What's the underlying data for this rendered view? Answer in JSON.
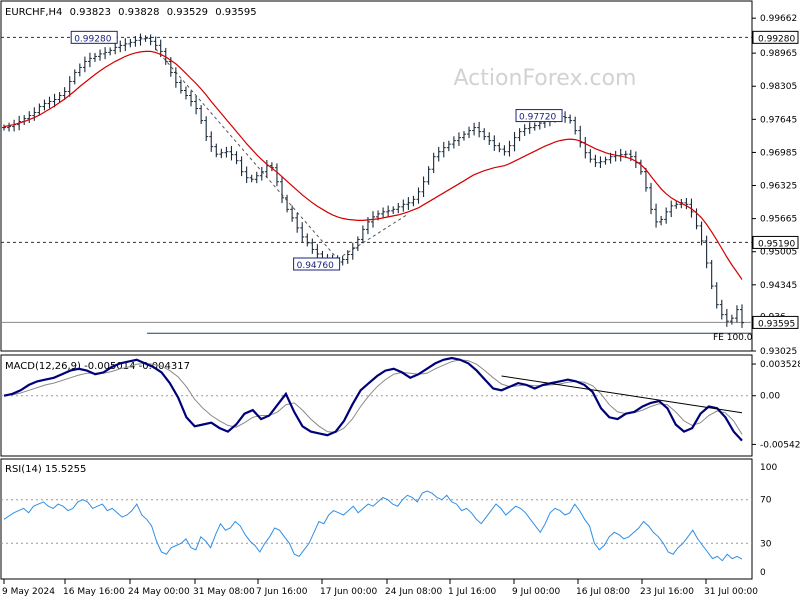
{
  "watermark": "ActionForex.com",
  "chart_data": [
    {
      "type": "candlestick",
      "symbol_header": "EURCHF,H4",
      "ohlc_header": [
        "0.93823",
        "0.93828",
        "0.93529",
        "0.93595"
      ],
      "ylim": [
        0.93025,
        0.99925
      ],
      "y_ticks": [
        "0.99662",
        "0.98965",
        "0.98305",
        "0.97645",
        "0.96985",
        "0.96325",
        "0.95665",
        "0.95005",
        "0.94345",
        "0.93025"
      ],
      "x_ticks": [
        "9 May 2024",
        "16 May 16:00",
        "24 May 00:00",
        "31 May 08:00",
        "7 Jun 16:00",
        "17 Jun 00:00",
        "24 Jun 08:00",
        "1 Jul 16:00",
        "9 Jul 00:00",
        "16 Jul 08:00",
        "23 Jul 16:00",
        "31 Jul 00:00"
      ],
      "horizontal_levels": [
        {
          "value": 0.9928,
          "label": "0.99280",
          "style": "dashed"
        },
        {
          "value": 0.9519,
          "label": "0.95190",
          "style": "dashed"
        },
        {
          "value": 0.93595,
          "label": "0.93595",
          "style": "solid"
        }
      ],
      "fe_label": "FE 100.0",
      "fe_level": 0.9338,
      "fe_partial_label": "0.936",
      "annotations": [
        {
          "label": "0.99280",
          "value": 0.9928
        },
        {
          "label": "0.94760",
          "value": 0.9476
        },
        {
          "label": "0.97720",
          "value": 0.9772
        }
      ],
      "price_close": [
        0.9748,
        0.975,
        0.9754,
        0.976,
        0.9766,
        0.9772,
        0.9778,
        0.979,
        0.9796,
        0.98,
        0.9804,
        0.9812,
        0.982,
        0.984,
        0.9858,
        0.9868,
        0.988,
        0.9886,
        0.989,
        0.9895,
        0.9898,
        0.9902,
        0.9908,
        0.9912,
        0.9915,
        0.9918,
        0.9922,
        0.9925,
        0.9926,
        0.992,
        0.9912,
        0.99,
        0.988,
        0.9858,
        0.9838,
        0.9822,
        0.9812,
        0.98,
        0.9786,
        0.9762,
        0.973,
        0.971,
        0.9695,
        0.9698,
        0.97,
        0.9694,
        0.9682,
        0.966,
        0.9648,
        0.9645,
        0.9652,
        0.966,
        0.9672,
        0.9668,
        0.964,
        0.9608,
        0.9585,
        0.9568,
        0.9548,
        0.953,
        0.9518,
        0.9505,
        0.9496,
        0.9488,
        0.9485,
        0.9482,
        0.948,
        0.9485,
        0.9495,
        0.9508,
        0.9525,
        0.9545,
        0.956,
        0.957,
        0.9576,
        0.958,
        0.9582,
        0.9585,
        0.959,
        0.9595,
        0.9598,
        0.9605,
        0.962,
        0.964,
        0.9665,
        0.969,
        0.97,
        0.9708,
        0.9715,
        0.9722,
        0.9728,
        0.9735,
        0.9742,
        0.9748,
        0.974,
        0.973,
        0.9722,
        0.9712,
        0.9705,
        0.97,
        0.9712,
        0.9728,
        0.974,
        0.9746,
        0.9748,
        0.9752,
        0.9757,
        0.9762,
        0.9765,
        0.9768,
        0.977,
        0.9768,
        0.9762,
        0.9742,
        0.9718,
        0.9698,
        0.9685,
        0.9678,
        0.968,
        0.9684,
        0.969,
        0.9692,
        0.9694,
        0.9695,
        0.969,
        0.9678,
        0.966,
        0.9628,
        0.9585,
        0.956,
        0.9565,
        0.958,
        0.9592,
        0.9595,
        0.9598,
        0.9595,
        0.958,
        0.9552,
        0.9522,
        0.9478,
        0.9432,
        0.9395,
        0.9375,
        0.9362,
        0.9368,
        0.9385,
        0.9359
      ],
      "ma_values": [
        0.975,
        0.9752,
        0.9754,
        0.9757,
        0.976,
        0.9764,
        0.9768,
        0.9773,
        0.9779,
        0.9785,
        0.9791,
        0.9798,
        0.9805,
        0.9813,
        0.9821,
        0.983,
        0.9838,
        0.9846,
        0.9854,
        0.9861,
        0.9868,
        0.9874,
        0.988,
        0.9885,
        0.989,
        0.9894,
        0.9897,
        0.9899,
        0.99,
        0.99,
        0.9898,
        0.9894,
        0.9889,
        0.9882,
        0.9875,
        0.9866,
        0.9856,
        0.9846,
        0.9836,
        0.9825,
        0.9813,
        0.98,
        0.9788,
        0.9776,
        0.9764,
        0.9752,
        0.974,
        0.9728,
        0.9716,
        0.9705,
        0.9694,
        0.9684,
        0.9675,
        0.9667,
        0.9659,
        0.965,
        0.9641,
        0.9632,
        0.9623,
        0.9614,
        0.9606,
        0.9598,
        0.9591,
        0.9585,
        0.9579,
        0.9574,
        0.957,
        0.9567,
        0.9565,
        0.9564,
        0.9563,
        0.9563,
        0.9564,
        0.9565,
        0.9566,
        0.9568,
        0.957,
        0.9572,
        0.9574,
        0.9577,
        0.958,
        0.9584,
        0.9588,
        0.9594,
        0.96,
        0.9606,
        0.9612,
        0.9618,
        0.9624,
        0.963,
        0.9636,
        0.9642,
        0.9648,
        0.9654,
        0.9658,
        0.9662,
        0.9665,
        0.9668,
        0.967,
        0.9672,
        0.9676,
        0.9681,
        0.9686,
        0.9691,
        0.9696,
        0.9701,
        0.9706,
        0.9711,
        0.9715,
        0.9719,
        0.9722,
        0.9724,
        0.9725,
        0.9724,
        0.9721,
        0.9716,
        0.9711,
        0.9706,
        0.9702,
        0.9698,
        0.9695,
        0.9693,
        0.9691,
        0.9689,
        0.9686,
        0.9681,
        0.9674,
        0.9664,
        0.9651,
        0.9638,
        0.9626,
        0.9616,
        0.9608,
        0.9602,
        0.9597,
        0.9592,
        0.9586,
        0.9578,
        0.9568,
        0.9555,
        0.954,
        0.9524,
        0.9507,
        0.949,
        0.9474,
        0.946,
        0.9445
      ],
      "trendlines": [
        {
          "from_index": 30,
          "from_value": 0.9905,
          "to_index": 66,
          "to_value": 0.9486
        },
        {
          "from_index": 66,
          "from_value": 0.9486,
          "to_index": 80,
          "to_value": 0.9576
        }
      ]
    },
    {
      "type": "line",
      "title": "MACD(12,26,9) -0.005014 -0.004317",
      "y_ticks": [
        "0.003528",
        "0.00",
        "-0.00542"
      ],
      "ylim": [
        -0.0066,
        0.0042
      ],
      "zero_value": 0.0,
      "series": [
        {
          "values": [
            0.0,
            0.0002,
            0.0006,
            0.0012,
            0.0016,
            0.0018,
            0.002,
            0.0024,
            0.0028,
            0.003,
            0.0028,
            0.0024,
            0.0026,
            0.0032,
            0.0036,
            0.0038,
            0.004,
            0.0036,
            0.0032,
            0.0026,
            0.0014,
            -0.0002,
            -0.0024,
            -0.0034,
            -0.0032,
            -0.003,
            -0.0036,
            -0.004,
            -0.0032,
            -0.002,
            -0.0016,
            -0.0026,
            -0.0022,
            -0.001,
            0.0002,
            -0.0018,
            -0.0034,
            -0.004,
            -0.0042,
            -0.0044,
            -0.004,
            -0.0028,
            -0.001,
            0.0006,
            0.0014,
            0.0022,
            0.0028,
            0.003,
            0.0026,
            0.002,
            0.0024,
            0.003,
            0.0036,
            0.004,
            0.0042,
            0.004,
            0.0036,
            0.0028,
            0.0018,
            0.0008,
            0.0006,
            0.001,
            0.0014,
            0.0012,
            0.0008,
            0.0012,
            0.0014,
            0.0016,
            0.0018,
            0.0016,
            0.0012,
            0.0004,
            -0.0014,
            -0.0024,
            -0.0026,
            -0.002,
            -0.0018,
            -0.0012,
            -0.0008,
            -0.0006,
            -0.0014,
            -0.0032,
            -0.004,
            -0.0036,
            -0.002,
            -0.0012,
            -0.0014,
            -0.0024,
            -0.004,
            -0.005
          ]
        },
        {
          "values": [
            0.0,
            0.0001,
            0.0003,
            0.0006,
            0.0009,
            0.0012,
            0.0014,
            0.0017,
            0.002,
            0.0023,
            0.0025,
            0.0025,
            0.0025,
            0.0027,
            0.003,
            0.0032,
            0.0035,
            0.0036,
            0.0035,
            0.0033,
            0.0028,
            0.0021,
            0.001,
            -0.0004,
            -0.0014,
            -0.0022,
            -0.0028,
            -0.0033,
            -0.0035,
            -0.003,
            -0.0024,
            -0.0022,
            -0.0022,
            -0.0018,
            -0.001,
            -0.0008,
            -0.0016,
            -0.0026,
            -0.0034,
            -0.004,
            -0.0041,
            -0.0036,
            -0.0026,
            -0.0012,
            0.0,
            0.001,
            0.0018,
            0.0024,
            0.0026,
            0.0025,
            0.0024,
            0.0025,
            0.003,
            0.0034,
            0.0038,
            0.004,
            0.0039,
            0.0035,
            0.0028,
            0.002,
            0.0013,
            0.001,
            0.0011,
            0.0012,
            0.0011,
            0.0011,
            0.0012,
            0.0013,
            0.0015,
            0.0016,
            0.0015,
            0.0011,
            0.0002,
            -0.001,
            -0.0018,
            -0.002,
            -0.0019,
            -0.0016,
            -0.0012,
            -0.0009,
            -0.001,
            -0.0018,
            -0.0028,
            -0.0033,
            -0.003,
            -0.0022,
            -0.0017,
            -0.0019,
            -0.0028,
            -0.0043
          ]
        }
      ],
      "trendline": {
        "from_index": 60,
        "from_value": 0.0022,
        "to_index": 89,
        "to_value": -0.0019
      }
    },
    {
      "type": "line",
      "title": "RSI(14) 15.5255",
      "y_ticks": [
        "100",
        "70",
        "30",
        "0"
      ],
      "ylim": [
        0,
        100
      ],
      "levels": [
        70,
        30
      ],
      "series": [
        {
          "values": [
            52,
            55,
            58,
            60,
            62,
            58,
            64,
            66,
            68,
            64,
            62,
            66,
            64,
            60,
            62,
            68,
            70,
            68,
            62,
            64,
            66,
            60,
            62,
            58,
            54,
            56,
            60,
            66,
            56,
            52,
            46,
            32,
            22,
            20,
            26,
            28,
            30,
            34,
            26,
            24,
            36,
            32,
            26,
            38,
            48,
            42,
            44,
            50,
            46,
            38,
            32,
            28,
            22,
            30,
            36,
            44,
            42,
            36,
            30,
            20,
            18,
            24,
            30,
            40,
            50,
            48,
            56,
            60,
            58,
            56,
            60,
            64,
            58,
            62,
            66,
            64,
            68,
            72,
            70,
            66,
            64,
            70,
            74,
            72,
            68,
            76,
            78,
            76,
            72,
            70,
            74,
            68,
            66,
            60,
            62,
            58,
            52,
            48,
            54,
            60,
            66,
            62,
            56,
            60,
            64,
            62,
            58,
            52,
            46,
            40,
            48,
            58,
            62,
            60,
            56,
            58,
            66,
            60,
            52,
            46,
            30,
            24,
            28,
            36,
            40,
            38,
            34,
            36,
            40,
            44,
            50,
            46,
            40,
            36,
            30,
            22,
            20,
            26,
            30,
            36,
            42,
            34,
            28,
            22,
            16,
            18,
            14,
            20,
            16,
            18,
            15.5
          ]
        }
      ]
    }
  ]
}
